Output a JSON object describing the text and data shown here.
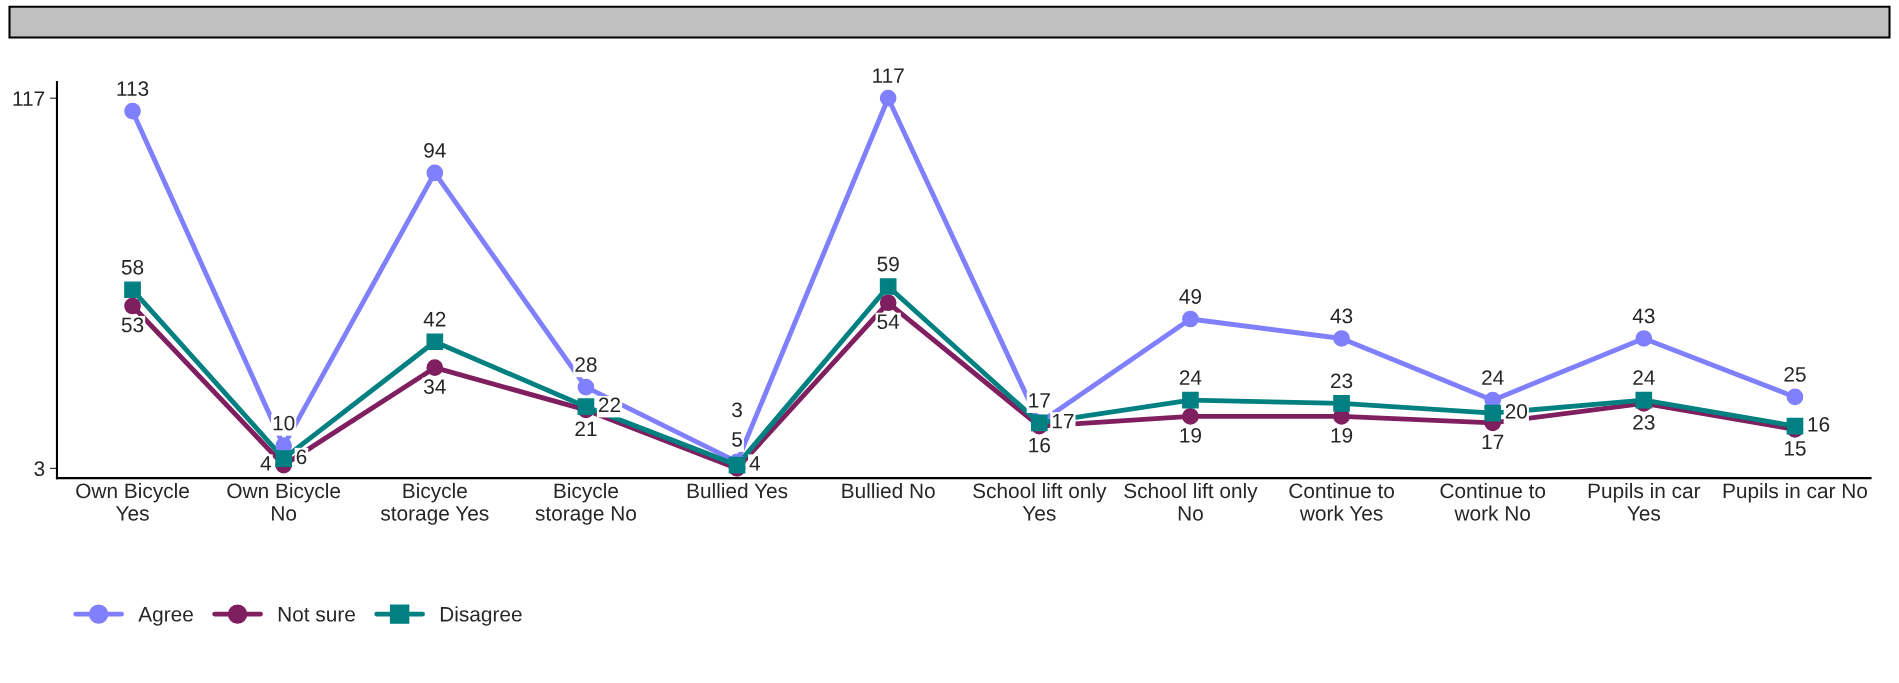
{
  "chart_data": {
    "type": "line",
    "categories": [
      "Own Bicycle\nYes",
      "Own Bicycle\nNo",
      "Bicycle\nstorage Yes",
      "Bicycle\nstorage No",
      "Bullied Yes",
      "Bullied No",
      "School lift only\nYes",
      "School lift only\nNo",
      "Continue to\nwork Yes",
      "Continue to\nwork No",
      "Pupils in car\nYes",
      "Pupils in car No"
    ],
    "series": [
      {
        "name": "Agree",
        "color": "#8080ff",
        "marker": "circle",
        "values": [
          113,
          10,
          94,
          28,
          5,
          117,
          17,
          49,
          43,
          24,
          43,
          25
        ]
      },
      {
        "name": "Not sure",
        "color": "#7f1f5f",
        "marker": "circle",
        "values": [
          53,
          4,
          34,
          21,
          3,
          54,
          16,
          19,
          19,
          17,
          23,
          15
        ]
      },
      {
        "name": "Disagree",
        "color": "#008080",
        "marker": "square",
        "values": [
          58,
          6,
          42,
          22,
          4,
          59,
          17,
          24,
          23,
          20,
          24,
          16
        ]
      }
    ],
    "ylim": [
      0,
      122
    ],
    "yticks": [
      3,
      117
    ],
    "grid": false,
    "legend": "bottom left",
    "data_labels": true
  }
}
